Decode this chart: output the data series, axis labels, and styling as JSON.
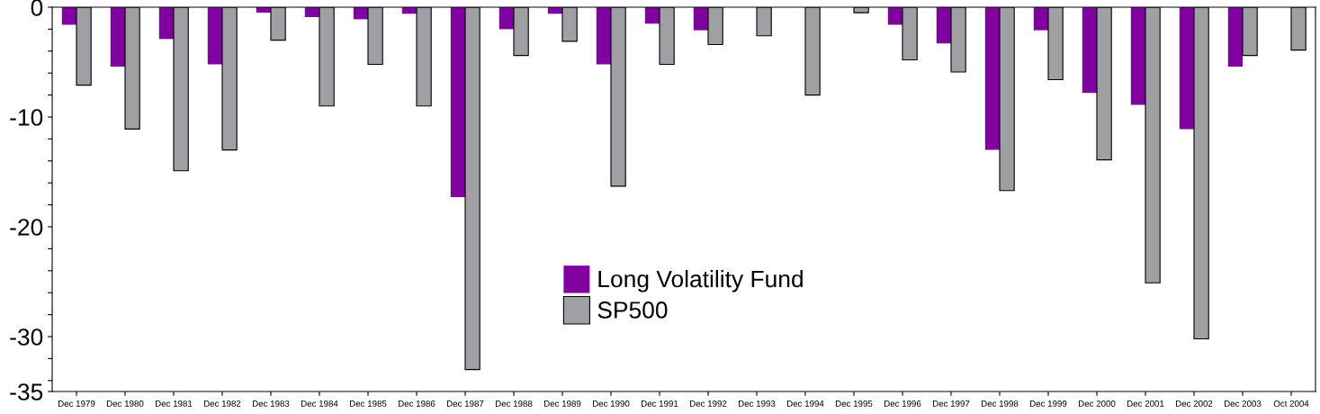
{
  "chart_data": {
    "type": "bar",
    "categories": [
      "Dec 1979",
      "Dec 1980",
      "Dec 1981",
      "Dec 1982",
      "Dec 1983",
      "Dec 1984",
      "Dec 1985",
      "Dec 1986",
      "Dec 1987",
      "Dec 1988",
      "Dec 1989",
      "Dec 1990",
      "Dec 1991",
      "Dec 1992",
      "Dec 1993",
      "Dec 1994",
      "Dec 1995",
      "Dec 1996",
      "Dec 1997",
      "Dec 1998",
      "Dec 1999",
      "Dec 2000",
      "Dec 2001",
      "Dec 2002",
      "Dec 2003",
      "Oct 2004"
    ],
    "series": [
      {
        "name": "Long Volatility Fund",
        "color": "#8000a0",
        "values": [
          -1.6,
          -5.4,
          -2.9,
          -5.2,
          -0.5,
          -0.9,
          -1.1,
          -0.6,
          -17.3,
          -2.0,
          -0.6,
          -5.2,
          -1.5,
          -2.1,
          0,
          0,
          0,
          -1.6,
          -3.3,
          -13.0,
          -2.1,
          -7.8,
          -8.9,
          -11.1,
          -5.4,
          0
        ]
      },
      {
        "name": "SP500",
        "color": "#a0a0a4",
        "values": [
          -7.1,
          -11.1,
          -14.9,
          -13.0,
          -3.0,
          -9.0,
          -5.2,
          -9.0,
          -33.0,
          -4.4,
          -3.1,
          -16.3,
          -5.2,
          -3.4,
          -2.6,
          -8.0,
          -0.5,
          -4.8,
          -5.9,
          -16.7,
          -6.6,
          -13.9,
          -25.1,
          -30.2,
          -4.4,
          -3.9
        ]
      }
    ],
    "ylim": [
      -35,
      0
    ],
    "yticks": [
      0,
      {
        "value": -2,
        "label": null
      },
      {
        "value": -4,
        "label": null
      },
      {
        "value": -6,
        "label": null
      },
      {
        "value": -8,
        "label": null
      },
      -10,
      {
        "value": -12,
        "label": null
      },
      {
        "value": -14,
        "label": null
      },
      {
        "value": -16,
        "label": null
      },
      {
        "value": -18,
        "label": null
      },
      -20,
      {
        "value": -22,
        "label": null
      },
      {
        "value": -24,
        "label": null
      },
      {
        "value": -26,
        "label": null
      },
      {
        "value": -28,
        "label": null
      },
      -30,
      {
        "value": -32,
        "label": null
      },
      {
        "value": -34,
        "label": null
      },
      -35
    ],
    "grid": false,
    "legend": "bottom center"
  }
}
